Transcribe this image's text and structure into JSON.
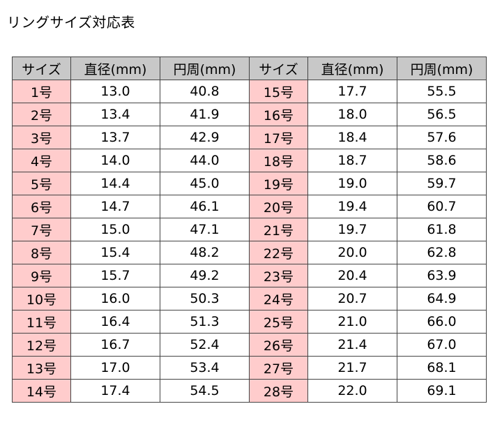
{
  "title": "リングサイズ対応表",
  "headers": [
    "サイズ",
    "直径(mm)",
    "円周(mm)",
    "サイズ",
    "直径(mm)",
    "円周(mm)"
  ],
  "rows": [
    {
      "size_a": "1号",
      "diam_a": "13.0",
      "circ_a": "40.8",
      "size_b": "15号",
      "diam_b": "17.7",
      "circ_b": "55.5"
    },
    {
      "size_a": "2号",
      "diam_a": "13.4",
      "circ_a": "41.9",
      "size_b": "16号",
      "diam_b": "18.0",
      "circ_b": "56.5"
    },
    {
      "size_a": "3号",
      "diam_a": "13.7",
      "circ_a": "42.9",
      "size_b": "17号",
      "diam_b": "18.4",
      "circ_b": "57.6"
    },
    {
      "size_a": "4号",
      "diam_a": "14.0",
      "circ_a": "44.0",
      "size_b": "18号",
      "diam_b": "18.7",
      "circ_b": "58.6"
    },
    {
      "size_a": "5号",
      "diam_a": "14.4",
      "circ_a": "45.0",
      "size_b": "19号",
      "diam_b": "19.0",
      "circ_b": "59.7"
    },
    {
      "size_a": "6号",
      "diam_a": "14.7",
      "circ_a": "46.1",
      "size_b": "20号",
      "diam_b": "19.4",
      "circ_b": "60.7"
    },
    {
      "size_a": "7号",
      "diam_a": "15.0",
      "circ_a": "47.1",
      "size_b": "21号",
      "diam_b": "19.7",
      "circ_b": "61.8"
    },
    {
      "size_a": "8号",
      "diam_a": "15.4",
      "circ_a": "48.2",
      "size_b": "22号",
      "diam_b": "20.0",
      "circ_b": "62.8"
    },
    {
      "size_a": "9号",
      "diam_a": "15.7",
      "circ_a": "49.2",
      "size_b": "23号",
      "diam_b": "20.4",
      "circ_b": "63.9"
    },
    {
      "size_a": "10号",
      "diam_a": "16.0",
      "circ_a": "50.3",
      "size_b": "24号",
      "diam_b": "20.7",
      "circ_b": "64.9"
    },
    {
      "size_a": "11号",
      "diam_a": "16.4",
      "circ_a": "51.3",
      "size_b": "25号",
      "diam_b": "21.0",
      "circ_b": "66.0"
    },
    {
      "size_a": "12号",
      "diam_a": "16.7",
      "circ_a": "52.4",
      "size_b": "26号",
      "diam_b": "21.4",
      "circ_b": "67.0"
    },
    {
      "size_a": "13号",
      "diam_a": "17.0",
      "circ_a": "53.4",
      "size_b": "27号",
      "diam_b": "21.7",
      "circ_b": "68.1"
    },
    {
      "size_a": "14号",
      "diam_a": "17.4",
      "circ_a": "54.5",
      "size_b": "28号",
      "diam_b": "22.0",
      "circ_b": "69.1"
    }
  ],
  "colors": {
    "header_bg": "#c8c8c8",
    "size_cell_bg": "#ffcccc",
    "border": "#444444"
  }
}
